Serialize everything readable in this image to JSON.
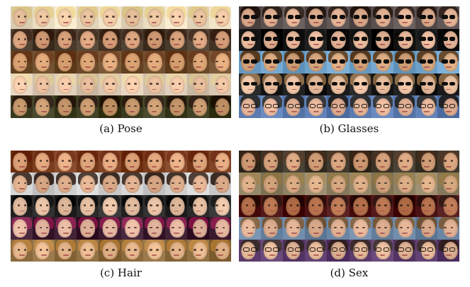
{
  "figure": {
    "panels": [
      {
        "id": "pose",
        "caption": "(a) Pose",
        "grid": {
          "rows": 5,
          "cols": 10
        },
        "row_styles": [
          {
            "bg": "#e9dcc0",
            "skin": "#f0c9a5",
            "hair": "#e6cf8f",
            "accessory": "none"
          },
          {
            "bg": "#4a3a2c",
            "skin": "#d9a27c",
            "hair": "#3b2416",
            "accessory": "none"
          },
          {
            "bg": "#6b4a2a",
            "skin": "#e0a878",
            "hair": "#6a3a1c",
            "accessory": "none"
          },
          {
            "bg": "#d8c7b2",
            "skin": "#f3c9a8",
            "hair": "#e4cfa0",
            "accessory": "none"
          },
          {
            "bg": "#3a3a1f",
            "skin": "#c99a6e",
            "hair": "#2a1a0f",
            "accessory": "none"
          }
        ]
      },
      {
        "id": "glasses",
        "caption": "(b) Glasses",
        "grid": {
          "rows": 5,
          "cols": 10
        },
        "row_styles": [
          {
            "bg": "#5a5050",
            "skin": "#e2b192",
            "hair": "#2a1c16",
            "accessory": "sunglasses"
          },
          {
            "bg": "#111111",
            "skin": "#e8b89a",
            "hair": "#0c0c0c",
            "accessory": "sunglasses"
          },
          {
            "bg": "#6ea1c9",
            "skin": "#d7a77f",
            "hair": "#5a3a1c",
            "accessory": "sunglasses"
          },
          {
            "bg": "#1a1a1a",
            "skin": "#ecc2a3",
            "hair": "#8c6a45",
            "accessory": "sunglasses"
          },
          {
            "bg": "#5b7bb0",
            "skin": "#e8b69a",
            "hair": "#2b2b2b",
            "accessory": "eyeglasses"
          }
        ]
      },
      {
        "id": "hair",
        "caption": "(c) Hair",
        "grid": {
          "rows": 5,
          "cols": 10
        },
        "row_styles": [
          {
            "bg": "#7a3d1e",
            "skin": "#e6aa80",
            "hair": "#6e2a12",
            "accessory": "none"
          },
          {
            "bg": "#cfcfcf",
            "skin": "#e0b08e",
            "hair": "#3a2a22",
            "accessory": "none"
          },
          {
            "bg": "#2a2a2a",
            "skin": "#e7c1a4",
            "hair": "#101010",
            "accessory": "none"
          },
          {
            "bg": "#3a1a2e",
            "skin": "#e8b9a2",
            "hair": "#8a1e4e",
            "accessory": "none"
          },
          {
            "bg": "#8b6a3e",
            "skin": "#e9b98f",
            "hair": "#b8823e",
            "accessory": "none"
          }
        ]
      },
      {
        "id": "sex",
        "caption": "(d) Sex",
        "grid": {
          "rows": 5,
          "cols": 10
        },
        "row_styles": [
          {
            "bg": "#3a3226",
            "skin": "#d6a27c",
            "hair": "#4a3220",
            "accessory": "none"
          },
          {
            "bg": "#8e8062",
            "skin": "#dcae86",
            "hair": "#9a8050",
            "accessory": "none"
          },
          {
            "bg": "#4a1212",
            "skin": "#b9744f",
            "hair": "#2a0e0a",
            "accessory": "none"
          },
          {
            "bg": "#6a86a4",
            "skin": "#e2b295",
            "hair": "#7a5a3a",
            "accessory": "none"
          },
          {
            "bg": "#5b3b6b",
            "skin": "#e5b898",
            "hair": "#3a2a2a",
            "accessory": "eyeglasses"
          }
        ]
      }
    ]
  }
}
